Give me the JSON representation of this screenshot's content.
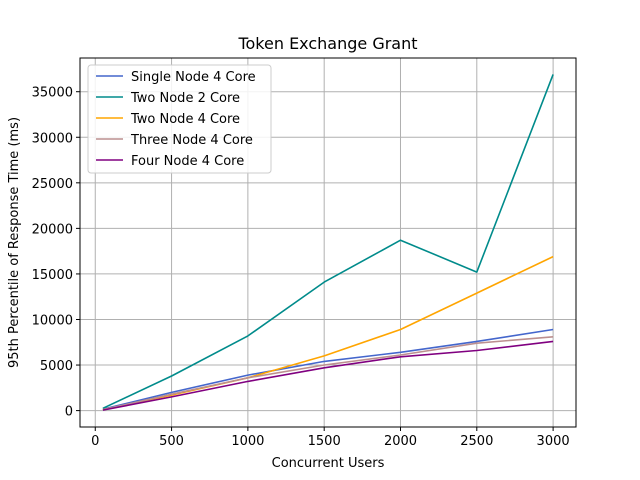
{
  "chart_data": {
    "type": "line",
    "title": "Token Exchange Grant",
    "xlabel": "Concurrent Users",
    "ylabel": "95th Percentile of Response Time (ms)",
    "x": [
      50,
      500,
      1000,
      1500,
      2000,
      2500,
      3000
    ],
    "xlim": [
      -100,
      3150
    ],
    "ylim": [
      -1800,
      38700
    ],
    "xticks": [
      0,
      500,
      1000,
      1500,
      2000,
      2500,
      3000
    ],
    "yticks": [
      0,
      5000,
      10000,
      15000,
      20000,
      25000,
      30000,
      35000
    ],
    "grid": true,
    "legend_position": "upper left",
    "series": [
      {
        "name": "Single Node 4 Core",
        "color": "#4466cc",
        "values": [
          150,
          2000,
          3900,
          5400,
          6400,
          7600,
          8900
        ]
      },
      {
        "name": "Two Node 2 Core",
        "color": "#008b8b",
        "values": [
          250,
          3800,
          8200,
          14100,
          18700,
          15200,
          36900
        ]
      },
      {
        "name": "Two Node 4 Core",
        "color": "#ffa500",
        "values": [
          100,
          1700,
          3600,
          6000,
          8900,
          12900,
          16900
        ]
      },
      {
        "name": "Three Node 4 Core",
        "color": "#bc8f8f",
        "values": [
          100,
          1800,
          3600,
          5000,
          6100,
          7400,
          8100
        ]
      },
      {
        "name": "Four Node 4 Core",
        "color": "#800080",
        "values": [
          50,
          1500,
          3200,
          4700,
          5900,
          6600,
          7600
        ]
      }
    ]
  }
}
